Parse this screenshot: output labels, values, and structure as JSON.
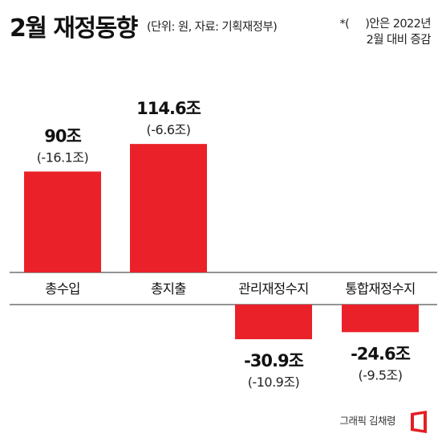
{
  "header": {
    "title": "2월 재정동향",
    "unit_source": "(단위: 원, 자료: 기획재정부)",
    "change_note_line1": "*(     )안은 2022년",
    "change_note_line2": "2월 대비 증감"
  },
  "chart_data": {
    "type": "bar",
    "title": "2월 재정동향",
    "categories": [
      "총수입",
      "총지출",
      "관리재정수지",
      "통합재정수지"
    ],
    "values": [
      90,
      114.6,
      -30.9,
      -24.6
    ],
    "value_labels": [
      "90조",
      "114.6조",
      "-30.9조",
      "-24.6조"
    ],
    "change_labels": [
      "(-16.1조)",
      "(-6.6조)",
      "(-10.9조)",
      "(-9.5조)"
    ],
    "unit": "조 원",
    "ylim": [
      -37,
      148
    ],
    "grid": false,
    "legend": "none",
    "bar_color": "#ea2129",
    "axis_color": "#555555"
  },
  "footer": {
    "credit": "그래픽 김채령",
    "logo_color": "#e41e26",
    "logo_icon": "logo-mark"
  }
}
